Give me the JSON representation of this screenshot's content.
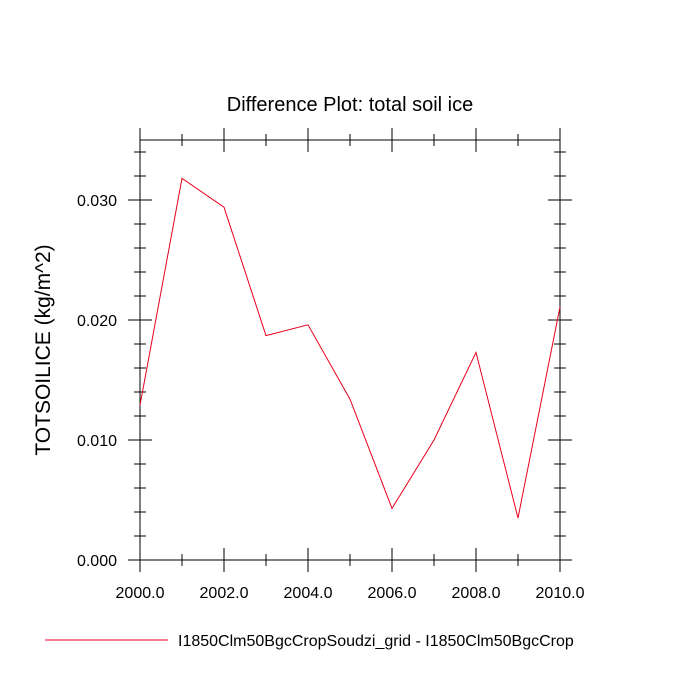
{
  "chart_data": {
    "type": "line",
    "title": "Difference Plot: total soil ice",
    "xlabel": "",
    "ylabel": "TOTSOILICE  (kg/m^2)",
    "xlim": [
      2000.0,
      2010.0
    ],
    "ylim": [
      0.0,
      0.035
    ],
    "x_ticks": [
      2000,
      2002,
      2004,
      2006,
      2008,
      2010
    ],
    "x_tick_labels": [
      "2000.0",
      "2002.0",
      "2004.0",
      "2006.0",
      "2008.0",
      "2010.0"
    ],
    "y_ticks": [
      0.0,
      0.01,
      0.02,
      0.03
    ],
    "y_tick_labels": [
      "0.000",
      "0.010",
      "0.020",
      "0.030"
    ],
    "grid": false,
    "legend_position": "bottom",
    "series": [
      {
        "name": "I1850Clm50BgcCropSoudzi_grid - I1850Clm50BgcCrop",
        "color": "#e8001c",
        "x": [
          2000,
          2001,
          2002,
          2003,
          2004,
          2005,
          2006,
          2007,
          2008,
          2009,
          2010
        ],
        "y": [
          0.0129,
          0.0318,
          0.0294,
          0.0187,
          0.0196,
          0.0134,
          0.0043,
          0.01,
          0.0173,
          0.0035,
          0.0211
        ]
      }
    ]
  }
}
